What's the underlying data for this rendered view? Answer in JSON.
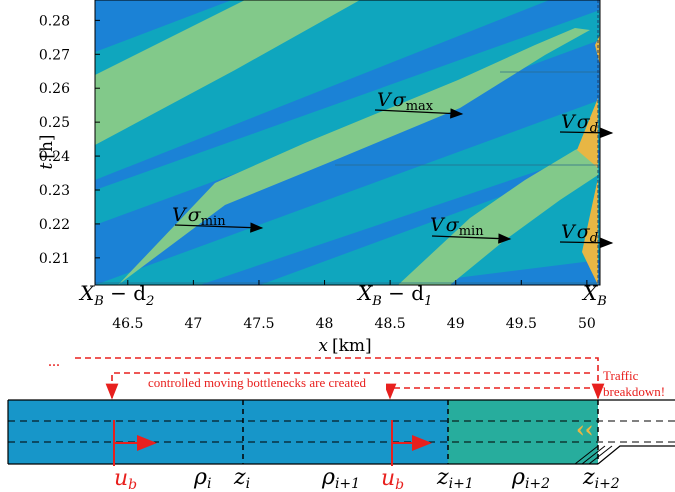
{
  "plot": {
    "x_axis": {
      "label": "x",
      "unit": "[km]",
      "range": [
        46.25,
        50.1
      ],
      "ticks": [
        "46.5",
        "47",
        "47.5",
        "48",
        "48.5",
        "49",
        "49.5",
        "50"
      ]
    },
    "y_axis": {
      "label": "t",
      "unit": "[h]",
      "range": [
        0.202,
        0.286
      ],
      "ticks": [
        "0.21",
        "0.22",
        "0.23",
        "0.24",
        "0.25",
        "0.26",
        "0.27",
        "0.28"
      ]
    },
    "annotations": {
      "v_sigma_max": {
        "v": "V",
        "sigma": "σ",
        "sub": "max"
      },
      "v_sigma_min_left": {
        "v": "V",
        "sigma": "σ",
        "sub": "min"
      },
      "v_sigma_min_right": {
        "v": "V",
        "sigma": "σ",
        "sub": "min"
      },
      "v_sigma_d_top": {
        "v": "V",
        "sigma": "σ",
        "sub": "d"
      },
      "v_sigma_d_bottom": {
        "v": "V",
        "sigma": "σ",
        "sub": "d"
      }
    },
    "bottom_labels": {
      "xb_d2": {
        "main": "X",
        "sub": "B",
        "tail": " − d",
        "tailsub": "2"
      },
      "xb_d1": {
        "main": "X",
        "sub": "B",
        "tail": " − d",
        "tailsub": "1"
      },
      "xb": {
        "main": "X",
        "sub": "B"
      }
    },
    "colors": {
      "blue": "#1b82d6",
      "teal": "#0fa6be",
      "green": "#82c98a",
      "yellow": "#e8b644"
    }
  },
  "schematic": {
    "ellipsis": "...",
    "created_text": "controlled moving bottlenecks are created",
    "traffic_line1": "Traffic",
    "traffic_line2": "breakdown!",
    "ub_symbol": "u",
    "ub_sub": "b",
    "rho_i": {
      "sym": "ρ",
      "sub": "i"
    },
    "z_i": {
      "sym": "z",
      "sub": "i"
    },
    "rho_i1": {
      "sym": "ρ",
      "sub": "i+1"
    },
    "z_i1": {
      "sym": "z",
      "sub": "i+1"
    },
    "rho_i2": {
      "sym": "ρ",
      "sub": "i+2"
    },
    "z_i2": {
      "sym": "z",
      "sub": "i+2"
    },
    "colors": {
      "road_left": "#1796c9",
      "road_right": "#27ad9d",
      "bottleneck": "#e8201e"
    }
  }
}
